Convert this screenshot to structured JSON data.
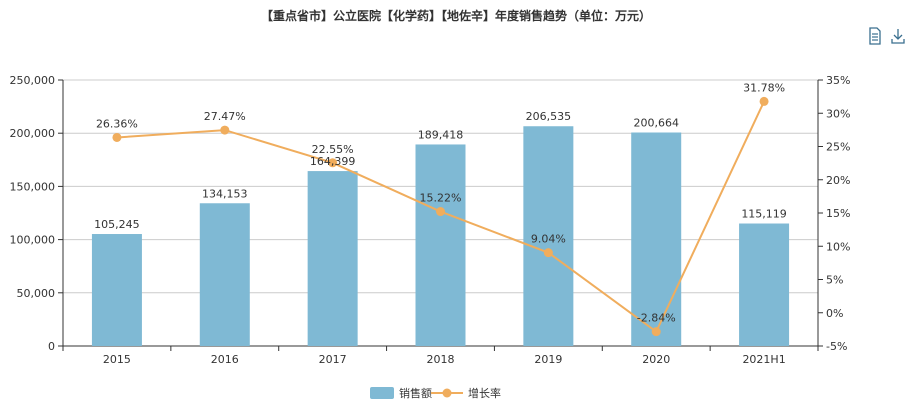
{
  "title": "【重点省市】公立医院【化学药】【地佐辛】年度销售趋势（单位：万元）",
  "toolbar": {
    "data_view_icon": "document-icon",
    "download_icon": "download-icon"
  },
  "colors": {
    "bar": "#7fb9d4",
    "line": "#f0ad5d",
    "axis": "#333333",
    "grid": "#cccccc"
  },
  "chart_data": {
    "type": "bar",
    "categories": [
      "2015",
      "2016",
      "2017",
      "2018",
      "2019",
      "2020",
      "2021H1"
    ],
    "series": [
      {
        "name": "销售额",
        "type": "bar",
        "axis": "left",
        "values": [
          105245,
          134153,
          164399,
          189418,
          206535,
          200664,
          115119
        ],
        "labels": [
          "105,245",
          "134,153",
          "164,399",
          "189,418",
          "206,535",
          "200,664",
          "115,119"
        ]
      },
      {
        "name": "增长率",
        "type": "line",
        "axis": "right",
        "values": [
          26.36,
          27.47,
          22.55,
          15.22,
          9.04,
          -2.84,
          31.78
        ],
        "labels": [
          "26.36%",
          "27.47%",
          "22.55%",
          "15.22%",
          "9.04%",
          "-2.84%",
          "31.78%"
        ]
      }
    ],
    "ylim_left": [
      0,
      250000
    ],
    "yticks_left": [
      "0",
      "50,000",
      "100,000",
      "150,000",
      "200,000",
      "250,000"
    ],
    "ylim_right": [
      -5,
      35
    ],
    "yticks_right": [
      "-5%",
      "0%",
      "5%",
      "10%",
      "15%",
      "20%",
      "25%",
      "30%",
      "35%"
    ],
    "grid": true,
    "legend": "bottom-center"
  }
}
